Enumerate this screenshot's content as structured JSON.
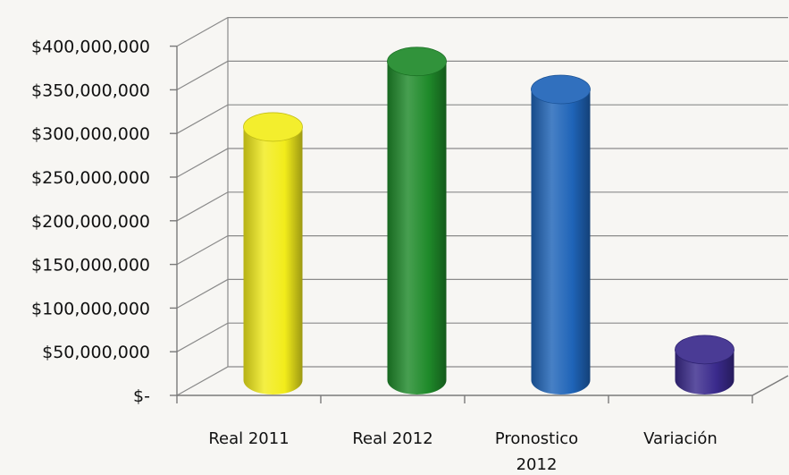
{
  "chart_data": {
    "type": "bar",
    "style": "3d-cylinder",
    "categories": [
      "Real 2011",
      "Real 2012",
      "Pronostico 2012",
      "Variación"
    ],
    "values": [
      290000000,
      365000000,
      333000000,
      35000000
    ],
    "colors": [
      "#f2ec1b",
      "#1f8a2a",
      "#1f64b8",
      "#3a2a8c"
    ],
    "ylim": [
      0,
      400000000
    ],
    "yticks": [
      {
        "value": 0,
        "label": "$-"
      },
      {
        "value": 50000000,
        "label": "$50,000,000"
      },
      {
        "value": 100000000,
        "label": "$100,000,000"
      },
      {
        "value": 150000000,
        "label": "$150,000,000"
      },
      {
        "value": 200000000,
        "label": "$200,000,000"
      },
      {
        "value": 250000000,
        "label": "$250,000,000"
      },
      {
        "value": 300000000,
        "label": "$300,000,000"
      },
      {
        "value": 350000000,
        "label": "$350,000,000"
      },
      {
        "value": 400000000,
        "label": "$400,000,000"
      }
    ],
    "title": "",
    "xlabel": "",
    "ylabel": "",
    "grid": true,
    "legend": "none"
  }
}
